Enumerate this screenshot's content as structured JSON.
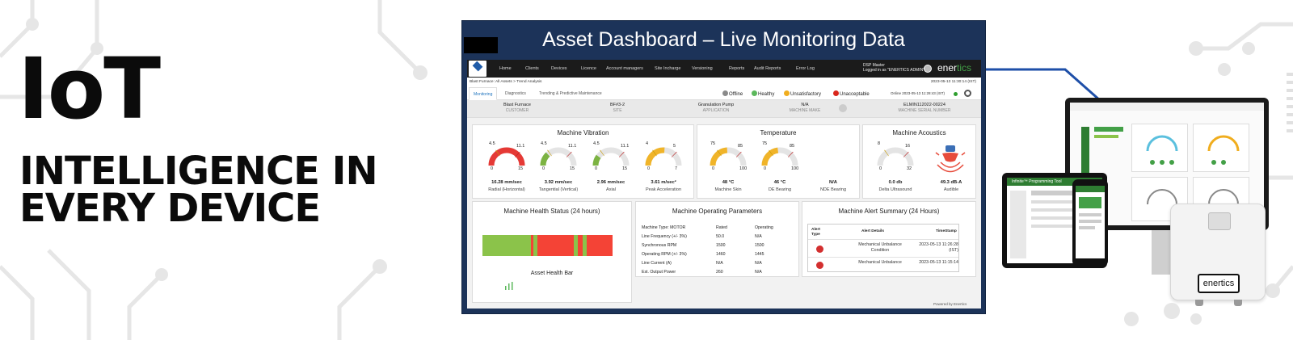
{
  "hero": {
    "title": "IoT",
    "line1": "INTELLIGENCE IN",
    "line2": "EVERY DEVICE"
  },
  "dashboard": {
    "title": "Asset Dashboard – Live Monitoring Data",
    "nav": {
      "items": [
        "Home",
        "Clients",
        "Devices",
        "Licence",
        "Account managers",
        "Site Incharge",
        "Versioning",
        "Reports",
        "Audit Reports",
        "Error Log"
      ],
      "user_line1": "DSP Master",
      "user_line2": "Logged in as \"ENERTICS ADMIN\"",
      "brand_a": "ener",
      "brand_b": "tics"
    },
    "breadcrumb": "Blast Furnace: All Assets  >  Trend Analysis",
    "breadcrumb_time": "2023-05-13 11:30:14 (IST)",
    "tabs": [
      "Monitoring",
      "Diagnostics",
      "Trending & Predictive Maintenance"
    ],
    "statuses": [
      {
        "label": "Offline",
        "color": "#8a8a8a"
      },
      {
        "label": "Healthy",
        "color": "#5cb85c"
      },
      {
        "label": "Unsatisfactory",
        "color": "#f0ad1e"
      },
      {
        "label": "Unacceptable",
        "color": "#d9261c"
      }
    ],
    "online_text": "Online  2023-05-13 11:28:43 (IST)",
    "info": [
      {
        "value": "Blast Furnace",
        "label": "CUSTOMER"
      },
      {
        "value": "BF#3-2",
        "label": "SITE"
      },
      {
        "value": "Granulation Pump",
        "label": "APPLICATION"
      },
      {
        "value": "N/A",
        "label": "MACHINE MAKE"
      },
      {
        "value": "ELMIN112022-00224",
        "label": "MACHINE SERIAL NUMBER"
      }
    ],
    "vibration": {
      "title": "Machine Vibration",
      "gauges": [
        {
          "value": "16.28 mm/sec",
          "label": "Radial (Horizontal)",
          "min": "0",
          "max": "15",
          "t1": "4.5",
          "t2": "11.1",
          "level": 1.0
        },
        {
          "value": "3.92 mm/sec",
          "label": "Tangential (Vertical)",
          "min": "0",
          "max": "15",
          "t1": "4.5",
          "t2": "11.1",
          "level": 0.26
        },
        {
          "value": "2.96 mm/sec",
          "label": "Axial",
          "min": "0",
          "max": "15",
          "t1": "4.5",
          "t2": "11.1",
          "level": 0.2
        },
        {
          "value": "3.61 m/sec²",
          "label": "Peak Acceleration",
          "min": "0",
          "max": "7",
          "t1": "4",
          "t2": "5",
          "level": 0.52
        }
      ]
    },
    "temperature": {
      "title": "Temperature",
      "gauges": [
        {
          "value": "48 °C",
          "label": "Machine Skin",
          "min": "0",
          "max": "100",
          "t1": "75",
          "t2": "85",
          "level": 0.48
        },
        {
          "value": "46 °C",
          "label": "DE Bearing",
          "min": "0",
          "max": "100",
          "t1": "75",
          "t2": "85",
          "level": 0.46
        }
      ],
      "extra": {
        "value": "N/A",
        "label": "NDE Bearing"
      }
    },
    "acoustics": {
      "title": "Machine Acoustics",
      "gauge": {
        "value": "0.0 db",
        "label": "Delta Ultrasound",
        "min": "0",
        "max": "32",
        "t1": "8",
        "t2": "16",
        "level": 0.0
      },
      "audible": {
        "value": "49.3 dB-A",
        "label": "Audible"
      }
    },
    "health": {
      "title": "Machine Health Status (24 hours)",
      "bar_label": "Asset Health Bar",
      "segments": [
        {
          "color": "#8bc34a",
          "frac": 0.37
        },
        {
          "color": "#f44336",
          "frac": 0.02
        },
        {
          "color": "#8bc34a",
          "frac": 0.03
        },
        {
          "color": "#f44336",
          "frac": 0.28
        },
        {
          "color": "#8bc34a",
          "frac": 0.03
        },
        {
          "color": "#f44336",
          "frac": 0.04
        },
        {
          "color": "#8bc34a",
          "frac": 0.03
        },
        {
          "color": "#f44336",
          "frac": 0.2
        }
      ]
    },
    "params": {
      "title": "Machine Operating Parameters",
      "header": [
        "Machine Type: MOTOR",
        "Rated",
        "Operating"
      ],
      "rows": [
        [
          "Line Frequency (+/- 3%)",
          "50.0",
          "N/A"
        ],
        [
          "Synchronous RPM",
          "1500",
          "1500"
        ],
        [
          "Operating RPM (+/- 3%)",
          "1460",
          "1445"
        ],
        [
          "Line Current (A)",
          "N/A",
          "N/A"
        ],
        [
          "Est. Output Power",
          "260",
          "N/A"
        ]
      ]
    },
    "alerts": {
      "title": "Machine Alert Summary (24 Hours)",
      "headers": [
        "Alert Type",
        "Alert Details",
        "TimeStamp"
      ],
      "rows": [
        {
          "details": "Mechanical Unbalance Condition",
          "time": "2023-05-13 11:26:28 (IST)"
        },
        {
          "details": "Mechanical Unbalance",
          "time": "2023-05-13 11:15:14"
        }
      ]
    },
    "powered": "Powered by Enertics"
  },
  "devices": {
    "sensor_label": "enertics",
    "tablet_heading": "Infinite™ Programming Tool"
  }
}
